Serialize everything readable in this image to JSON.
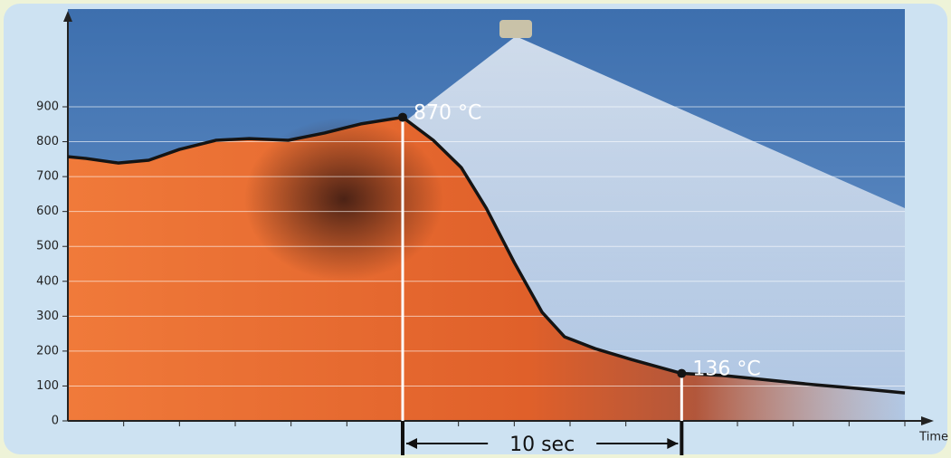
{
  "chart_data": {
    "type": "line",
    "xlabel": "Time",
    "x": [
      0,
      0.65,
      1.8,
      2.9,
      4,
      5.3,
      6.5,
      7.9,
      9.2,
      10.5,
      12,
      13.1,
      14.1,
      15,
      16,
      17,
      17.8,
      18.9,
      20.2,
      22,
      23.5,
      25.1,
      26.7,
      28.3,
      30
    ],
    "values": [
      757,
      752,
      739,
      747,
      778,
      804,
      809,
      804,
      825,
      851,
      870,
      804,
      726,
      609,
      454,
      311,
      241,
      207,
      176,
      136,
      130,
      117,
      104,
      93,
      80
    ],
    "color": "#141414",
    "xlim": [
      0,
      30
    ],
    "xticks": [
      2,
      4,
      6,
      8,
      10,
      12,
      14,
      16,
      18,
      20,
      22,
      24,
      26,
      28,
      30
    ],
    "ylim": [
      0,
      900
    ],
    "yticks": [
      0,
      100,
      200,
      300,
      400,
      500,
      600,
      700,
      800,
      900
    ],
    "grid": true,
    "annotations": [
      {
        "text": "870 °C",
        "x": 12,
        "y": 870
      },
      {
        "text": "136 °C",
        "x": 22,
        "y": 136
      }
    ],
    "span": {
      "label": "10 sec",
      "from": 12,
      "to": 22
    }
  }
}
